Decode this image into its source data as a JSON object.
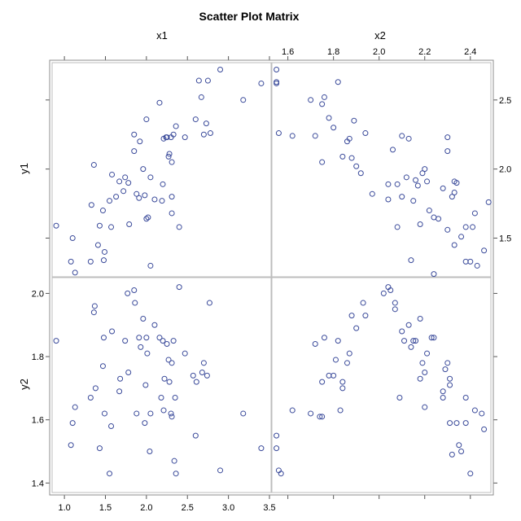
{
  "chart_data": {
    "type": "scatter",
    "title": "Scatter Plot Matrix",
    "variables": [
      "x1",
      "x2",
      "y1",
      "y2"
    ],
    "grid": false,
    "panels": [
      {
        "name": "y1 vs x1",
        "x_var": "x1",
        "y_var": "y1",
        "points": [
          [
            0.9,
            1.59
          ],
          [
            1.1,
            1.5
          ],
          [
            1.08,
            1.33
          ],
          [
            1.13,
            1.25
          ],
          [
            1.32,
            1.33
          ],
          [
            1.33,
            1.74
          ],
          [
            1.36,
            2.03
          ],
          [
            1.41,
            1.45
          ],
          [
            1.43,
            1.59
          ],
          [
            1.49,
            1.4
          ],
          [
            1.48,
            1.34
          ],
          [
            1.47,
            1.7
          ],
          [
            1.55,
            1.77
          ],
          [
            1.57,
            1.58
          ],
          [
            1.58,
            1.96
          ],
          [
            1.63,
            1.8
          ],
          [
            1.67,
            1.91
          ],
          [
            1.72,
            1.84
          ],
          [
            1.74,
            1.94
          ],
          [
            1.78,
            1.9
          ],
          [
            1.79,
            1.6
          ],
          [
            1.85,
            2.25
          ],
          [
            1.85,
            2.13
          ],
          [
            1.88,
            1.82
          ],
          [
            1.91,
            1.79
          ],
          [
            1.92,
            2.2
          ],
          [
            1.96,
            2.0
          ],
          [
            1.98,
            1.81
          ],
          [
            2.0,
            2.36
          ],
          [
            2.0,
            1.64
          ],
          [
            2.02,
            1.65
          ],
          [
            2.05,
            1.94
          ],
          [
            2.05,
            1.3
          ],
          [
            2.1,
            1.78
          ],
          [
            2.16,
            2.48
          ],
          [
            2.21,
            2.22
          ],
          [
            2.2,
            1.89
          ],
          [
            2.19,
            1.77
          ],
          [
            2.24,
            2.23
          ],
          [
            2.25,
            2.23
          ],
          [
            2.27,
            2.09
          ],
          [
            2.28,
            2.11
          ],
          [
            2.3,
            2.23
          ],
          [
            2.31,
            2.05
          ],
          [
            2.31,
            1.8
          ],
          [
            2.31,
            1.68
          ],
          [
            2.33,
            2.25
          ],
          [
            2.36,
            2.31
          ],
          [
            2.4,
            1.58
          ],
          [
            2.47,
            2.23
          ],
          [
            2.6,
            2.36
          ],
          [
            2.64,
            2.64
          ],
          [
            2.67,
            2.52
          ],
          [
            2.7,
            2.25
          ],
          [
            2.73,
            2.33
          ],
          [
            2.75,
            2.64
          ],
          [
            2.78,
            2.26
          ],
          [
            2.9,
            2.72
          ],
          [
            3.18,
            2.5
          ],
          [
            3.4,
            2.62
          ]
        ]
      },
      {
        "name": "y1 vs x2",
        "x_var": "x2",
        "y_var": "y1",
        "points": [
          [
            1.55,
            2.72
          ],
          [
            1.55,
            2.63
          ],
          [
            1.55,
            2.62
          ],
          [
            1.56,
            2.26
          ],
          [
            1.62,
            2.24
          ],
          [
            1.7,
            2.5
          ],
          [
            1.72,
            2.24
          ],
          [
            1.75,
            2.05
          ],
          [
            1.75,
            2.47
          ],
          [
            1.76,
            2.52
          ],
          [
            1.78,
            2.37
          ],
          [
            1.8,
            2.3
          ],
          [
            1.82,
            2.63
          ],
          [
            1.84,
            2.09
          ],
          [
            1.86,
            2.2
          ],
          [
            1.87,
            2.22
          ],
          [
            1.88,
            2.08
          ],
          [
            1.89,
            2.35
          ],
          [
            1.9,
            2.02
          ],
          [
            1.92,
            1.97
          ],
          [
            1.94,
            2.26
          ],
          [
            1.97,
            1.82
          ],
          [
            2.04,
            1.89
          ],
          [
            2.04,
            1.78
          ],
          [
            2.06,
            2.14
          ],
          [
            2.08,
            1.58
          ],
          [
            2.08,
            1.89
          ],
          [
            2.1,
            2.24
          ],
          [
            2.1,
            1.8
          ],
          [
            2.12,
            1.94
          ],
          [
            2.13,
            2.22
          ],
          [
            2.14,
            1.34
          ],
          [
            2.15,
            1.77
          ],
          [
            2.16,
            1.92
          ],
          [
            2.17,
            1.88
          ],
          [
            2.18,
            1.6
          ],
          [
            2.19,
            1.97
          ],
          [
            2.2,
            2.0
          ],
          [
            2.21,
            1.91
          ],
          [
            2.22,
            1.7
          ],
          [
            2.24,
            1.65
          ],
          [
            2.24,
            1.24
          ],
          [
            2.26,
            1.64
          ],
          [
            2.28,
            1.86
          ],
          [
            2.3,
            2.13
          ],
          [
            2.3,
            1.56
          ],
          [
            2.3,
            2.23
          ],
          [
            2.32,
            1.8
          ],
          [
            2.33,
            1.91
          ],
          [
            2.33,
            1.83
          ],
          [
            2.33,
            1.45
          ],
          [
            2.34,
            1.9
          ],
          [
            2.36,
            1.51
          ],
          [
            2.38,
            1.58
          ],
          [
            2.38,
            1.33
          ],
          [
            2.4,
            1.33
          ],
          [
            2.41,
            1.58
          ],
          [
            2.42,
            1.68
          ],
          [
            2.43,
            1.3
          ],
          [
            2.46,
            1.41
          ],
          [
            2.48,
            1.76
          ]
        ]
      },
      {
        "name": "y2 vs x1",
        "x_var": "x1",
        "y_var": "y2",
        "points": [
          [
            0.9,
            1.85
          ],
          [
            1.08,
            1.52
          ],
          [
            1.1,
            1.59
          ],
          [
            1.13,
            1.64
          ],
          [
            1.32,
            1.67
          ],
          [
            1.36,
            1.94
          ],
          [
            1.37,
            1.96
          ],
          [
            1.38,
            1.7
          ],
          [
            1.43,
            1.51
          ],
          [
            1.47,
            1.77
          ],
          [
            1.48,
            1.86
          ],
          [
            1.49,
            1.62
          ],
          [
            1.55,
            1.43
          ],
          [
            1.57,
            1.58
          ],
          [
            1.58,
            1.88
          ],
          [
            1.67,
            1.69
          ],
          [
            1.68,
            1.73
          ],
          [
            1.74,
            1.85
          ],
          [
            1.77,
            2.0
          ],
          [
            1.78,
            1.75
          ],
          [
            1.85,
            2.01
          ],
          [
            1.86,
            1.97
          ],
          [
            1.88,
            1.62
          ],
          [
            1.91,
            1.86
          ],
          [
            1.93,
            1.83
          ],
          [
            1.96,
            1.92
          ],
          [
            1.98,
            1.59
          ],
          [
            1.99,
            1.71
          ],
          [
            2.0,
            1.86
          ],
          [
            2.01,
            1.81
          ],
          [
            2.04,
            1.5
          ],
          [
            2.05,
            1.62
          ],
          [
            2.1,
            1.9
          ],
          [
            2.16,
            1.86
          ],
          [
            2.18,
            1.67
          ],
          [
            2.2,
            1.85
          ],
          [
            2.21,
            1.63
          ],
          [
            2.22,
            1.73
          ],
          [
            2.25,
            1.84
          ],
          [
            2.27,
            1.79
          ],
          [
            2.28,
            1.72
          ],
          [
            2.3,
            1.62
          ],
          [
            2.31,
            1.61
          ],
          [
            2.31,
            1.78
          ],
          [
            2.33,
            1.85
          ],
          [
            2.34,
            1.47
          ],
          [
            2.35,
            1.67
          ],
          [
            2.36,
            1.43
          ],
          [
            2.4,
            2.02
          ],
          [
            2.47,
            1.81
          ],
          [
            2.57,
            1.74
          ],
          [
            2.6,
            1.55
          ],
          [
            2.61,
            1.72
          ],
          [
            2.68,
            1.75
          ],
          [
            2.7,
            1.78
          ],
          [
            2.74,
            1.74
          ],
          [
            2.77,
            1.97
          ],
          [
            2.9,
            1.44
          ],
          [
            3.18,
            1.62
          ],
          [
            3.4,
            1.51
          ]
        ]
      },
      {
        "name": "y2 vs x2",
        "x_var": "x2",
        "y_var": "y2",
        "points": [
          [
            1.55,
            1.55
          ],
          [
            1.55,
            1.51
          ],
          [
            1.56,
            1.44
          ],
          [
            1.57,
            1.43
          ],
          [
            1.62,
            1.63
          ],
          [
            1.7,
            1.62
          ],
          [
            1.72,
            1.84
          ],
          [
            1.74,
            1.61
          ],
          [
            1.75,
            1.61
          ],
          [
            1.75,
            1.72
          ],
          [
            1.76,
            1.86
          ],
          [
            1.78,
            1.74
          ],
          [
            1.8,
            1.74
          ],
          [
            1.81,
            1.79
          ],
          [
            1.82,
            1.85
          ],
          [
            1.83,
            1.63
          ],
          [
            1.84,
            1.72
          ],
          [
            1.84,
            1.7
          ],
          [
            1.86,
            1.78
          ],
          [
            1.87,
            1.81
          ],
          [
            1.88,
            1.93
          ],
          [
            1.9,
            1.89
          ],
          [
            1.93,
            1.97
          ],
          [
            1.94,
            1.93
          ],
          [
            2.02,
            2.0
          ],
          [
            2.04,
            2.02
          ],
          [
            2.05,
            2.01
          ],
          [
            2.07,
            1.97
          ],
          [
            2.07,
            1.95
          ],
          [
            2.09,
            1.67
          ],
          [
            2.1,
            1.88
          ],
          [
            2.11,
            1.85
          ],
          [
            2.13,
            1.9
          ],
          [
            2.14,
            1.83
          ],
          [
            2.15,
            1.85
          ],
          [
            2.16,
            1.85
          ],
          [
            2.18,
            1.73
          ],
          [
            2.18,
            1.92
          ],
          [
            2.19,
            1.78
          ],
          [
            2.2,
            1.75
          ],
          [
            2.2,
            1.64
          ],
          [
            2.21,
            1.81
          ],
          [
            2.23,
            1.86
          ],
          [
            2.24,
            1.86
          ],
          [
            2.28,
            1.69
          ],
          [
            2.28,
            1.67
          ],
          [
            2.29,
            1.76
          ],
          [
            2.3,
            1.78
          ],
          [
            2.31,
            1.71
          ],
          [
            2.31,
            1.73
          ],
          [
            2.31,
            1.59
          ],
          [
            2.32,
            1.49
          ],
          [
            2.34,
            1.59
          ],
          [
            2.35,
            1.52
          ],
          [
            2.36,
            1.5
          ],
          [
            2.38,
            1.67
          ],
          [
            2.38,
            1.59
          ],
          [
            2.4,
            1.43
          ],
          [
            2.42,
            1.63
          ],
          [
            2.45,
            1.62
          ],
          [
            2.46,
            1.57
          ]
        ]
      }
    ],
    "axes": {
      "x1": {
        "ticks": [
          "1.0",
          "1.5",
          "2.0",
          "2.5",
          "3.0",
          "3.5"
        ],
        "range": [
          0.85,
          3.52
        ]
      },
      "x2": {
        "ticks": [
          "1.6",
          "1.8",
          "2.0",
          "2.2",
          "2.4"
        ],
        "range": [
          1.53,
          2.49
        ]
      },
      "y1": {
        "ticks": [
          "1.5",
          "2.0",
          "2.5"
        ],
        "range": [
          1.22,
          2.77
        ]
      },
      "y2": {
        "ticks": [
          "1.4",
          "1.6",
          "1.8",
          "2.0"
        ],
        "range": [
          1.37,
          2.05
        ]
      }
    }
  }
}
